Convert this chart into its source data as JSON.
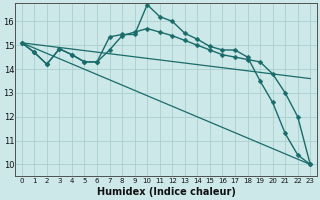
{
  "xlabel": "Humidex (Indice chaleur)",
  "background_color": "#cce8e8",
  "grid_color": "#aacece",
  "line_color": "#1a6b6b",
  "xlim": [
    -0.5,
    23.5
  ],
  "ylim": [
    9.5,
    16.75
  ],
  "yticks": [
    10,
    11,
    12,
    13,
    14,
    15,
    16
  ],
  "xtick_fontsize": 5.0,
  "ytick_fontsize": 6.0,
  "xlabel_fontsize": 7.0,
  "series": [
    {
      "x": [
        0,
        1,
        2,
        3,
        4,
        5,
        6,
        7,
        8,
        9,
        10,
        11,
        12,
        13,
        14,
        15,
        16,
        17,
        18,
        19,
        20,
        21,
        22,
        23
      ],
      "y": [
        15.1,
        14.7,
        14.2,
        14.85,
        14.6,
        14.3,
        14.3,
        15.35,
        15.45,
        15.45,
        16.7,
        16.2,
        16.0,
        15.5,
        15.25,
        14.95,
        14.8,
        14.8,
        14.5,
        13.5,
        12.6,
        11.3,
        10.4,
        10.0
      ],
      "marker": "D",
      "markersize": 2.5,
      "linewidth": 1.0,
      "has_marker": true
    },
    {
      "x": [
        0,
        1,
        2,
        3,
        4,
        5,
        6,
        7,
        8,
        9,
        10,
        11,
        12,
        13,
        14,
        15,
        16,
        17,
        18,
        19,
        20,
        21,
        22,
        23
      ],
      "y": [
        15.1,
        14.7,
        14.2,
        14.85,
        14.6,
        14.3,
        14.3,
        14.8,
        15.4,
        15.55,
        15.7,
        15.55,
        15.4,
        15.2,
        15.0,
        14.8,
        14.6,
        14.5,
        14.4,
        14.3,
        13.8,
        13.0,
        12.0,
        10.0
      ],
      "marker": "D",
      "markersize": 2.5,
      "linewidth": 1.0,
      "has_marker": true
    },
    {
      "x": [
        0,
        23
      ],
      "y": [
        15.1,
        13.6
      ],
      "marker": null,
      "markersize": 0,
      "linewidth": 0.9,
      "has_marker": false
    },
    {
      "x": [
        0,
        23
      ],
      "y": [
        15.1,
        10.0
      ],
      "marker": null,
      "markersize": 0,
      "linewidth": 0.9,
      "has_marker": false
    }
  ]
}
